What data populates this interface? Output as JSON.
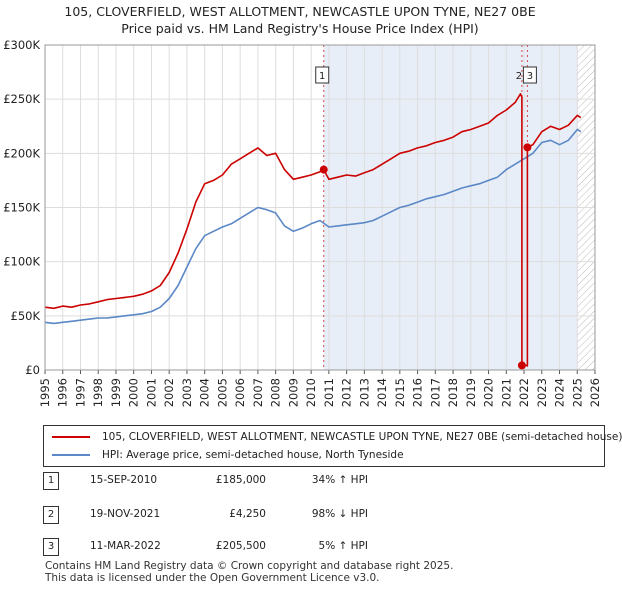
{
  "title_line1": "105, CLOVERFIELD, WEST ALLOTMENT, NEWCASTLE UPON TYNE, NE27 0BE",
  "title_line2": "Price paid vs. HM Land Registry's House Price Index (HPI)",
  "colors": {
    "property": "#cc0000",
    "hpi": "#5b88c6",
    "shade": "#e8eef8",
    "grid": "#dddddd"
  },
  "chart_data": {
    "type": "line",
    "xlim": [
      1995,
      2026
    ],
    "ylim": [
      0,
      300000
    ],
    "yticks": [
      0,
      50000,
      100000,
      150000,
      200000,
      250000,
      300000
    ],
    "ytick_labels": [
      "£0",
      "£50K",
      "£100K",
      "£150K",
      "£200K",
      "£250K",
      "£300K"
    ],
    "xticks": [
      1995,
      1996,
      1997,
      1998,
      1999,
      2000,
      2001,
      2002,
      2003,
      2004,
      2005,
      2006,
      2007,
      2008,
      2009,
      2010,
      2011,
      2012,
      2013,
      2014,
      2015,
      2016,
      2017,
      2018,
      2019,
      2020,
      2021,
      2022,
      2023,
      2024,
      2025,
      2026
    ],
    "shaded_range": [
      2010.71,
      2025.0
    ],
    "hatched_range": [
      2025.0,
      2026
    ],
    "series": [
      {
        "name": "105, CLOVERFIELD, WEST ALLOTMENT, NEWCASTLE UPON TYNE, NE27 0BE (semi-detached house)",
        "color": "#cc0000",
        "x": [
          1995,
          1995.5,
          1996,
          1996.5,
          1997,
          1997.5,
          1998,
          1998.5,
          1999,
          1999.5,
          2000,
          2000.5,
          2001,
          2001.5,
          2002,
          2002.5,
          2003,
          2003.5,
          2004,
          2004.5,
          2005,
          2005.5,
          2006,
          2006.5,
          2007,
          2007.5,
          2008,
          2008.5,
          2009,
          2009.5,
          2010,
          2010.5,
          2010.71,
          2011,
          2011.5,
          2012,
          2012.5,
          2013,
          2013.5,
          2014,
          2014.5,
          2015,
          2015.5,
          2016,
          2016.5,
          2017,
          2017.5,
          2018,
          2018.5,
          2019,
          2019.5,
          2020,
          2020.5,
          2021,
          2021.5,
          2021.8,
          2021.88,
          2021.88,
          2021.95,
          2022.19,
          2022.19,
          2022.5,
          2023,
          2023.5,
          2024,
          2024.5,
          2025,
          2025.2
        ],
        "y": [
          58000,
          57000,
          59000,
          58000,
          60000,
          61000,
          63000,
          65000,
          66000,
          67000,
          68000,
          70000,
          73000,
          78000,
          90000,
          108000,
          130000,
          155000,
          172000,
          175000,
          180000,
          190000,
          195000,
          200000,
          205000,
          198000,
          200000,
          185000,
          176000,
          178000,
          180000,
          183000,
          185000,
          176000,
          178000,
          180000,
          179000,
          182000,
          185000,
          190000,
          195000,
          200000,
          202000,
          205000,
          207000,
          210000,
          212000,
          215000,
          220000,
          222000,
          225000,
          228000,
          235000,
          240000,
          247000,
          255000,
          252000,
          4250,
          4250,
          4250,
          205500,
          208000,
          220000,
          225000,
          222000,
          226000,
          235000,
          233000
        ]
      },
      {
        "name": "HPI: Average price, semi-detached house, North Tyneside",
        "color": "#5b88c6",
        "x": [
          1995,
          1995.5,
          1996,
          1996.5,
          1997,
          1997.5,
          1998,
          1998.5,
          1999,
          1999.5,
          2000,
          2000.5,
          2001,
          2001.5,
          2002,
          2002.5,
          2003,
          2003.5,
          2004,
          2004.5,
          2005,
          2005.5,
          2006,
          2006.5,
          2007,
          2007.5,
          2008,
          2008.5,
          2009,
          2009.5,
          2010,
          2010.5,
          2011,
          2011.5,
          2012,
          2012.5,
          2013,
          2013.5,
          2014,
          2014.5,
          2015,
          2015.5,
          2016,
          2016.5,
          2017,
          2017.5,
          2018,
          2018.5,
          2019,
          2019.5,
          2020,
          2020.5,
          2021,
          2021.5,
          2022,
          2022.5,
          2023,
          2023.5,
          2024,
          2024.5,
          2025,
          2025.2
        ],
        "y": [
          44000,
          43000,
          44000,
          45000,
          46000,
          47000,
          48000,
          48000,
          49000,
          50000,
          51000,
          52000,
          54000,
          58000,
          66000,
          78000,
          95000,
          112000,
          124000,
          128000,
          132000,
          135000,
          140000,
          145000,
          150000,
          148000,
          145000,
          133000,
          128000,
          131000,
          135000,
          138000,
          132000,
          133000,
          134000,
          135000,
          136000,
          138000,
          142000,
          146000,
          150000,
          152000,
          155000,
          158000,
          160000,
          162000,
          165000,
          168000,
          170000,
          172000,
          175000,
          178000,
          185000,
          190000,
          195000,
          200000,
          210000,
          212000,
          208000,
          212000,
          222000,
          220000
        ]
      }
    ],
    "sales": [
      {
        "label": "1",
        "x": 2010.71,
        "price": 185000
      },
      {
        "label": "2",
        "x": 2021.88,
        "price": 4250
      },
      {
        "label": "3",
        "x": 2022.19,
        "price": 205500
      }
    ],
    "marker_label_top": "1",
    "marker_label_top_right": "3",
    "marker_label_top_left": "2"
  },
  "legend": {
    "property_label": "105, CLOVERFIELD, WEST ALLOTMENT, NEWCASTLE UPON TYNE, NE27 0BE (semi-detached house)",
    "hpi_label": "HPI: Average price, semi-detached house, North Tyneside"
  },
  "sales_table": [
    {
      "num": "1",
      "date": "15-SEP-2010",
      "price": "£185,000",
      "hpi": "34% ↑ HPI"
    },
    {
      "num": "2",
      "date": "19-NOV-2021",
      "price": "£4,250",
      "hpi": "98% ↓ HPI"
    },
    {
      "num": "3",
      "date": "11-MAR-2022",
      "price": "£205,500",
      "hpi": "5% ↑ HPI"
    }
  ],
  "footer_line1": "Contains HM Land Registry data © Crown copyright and database right 2025.",
  "footer_line2": "This data is licensed under the Open Government Licence v3.0."
}
